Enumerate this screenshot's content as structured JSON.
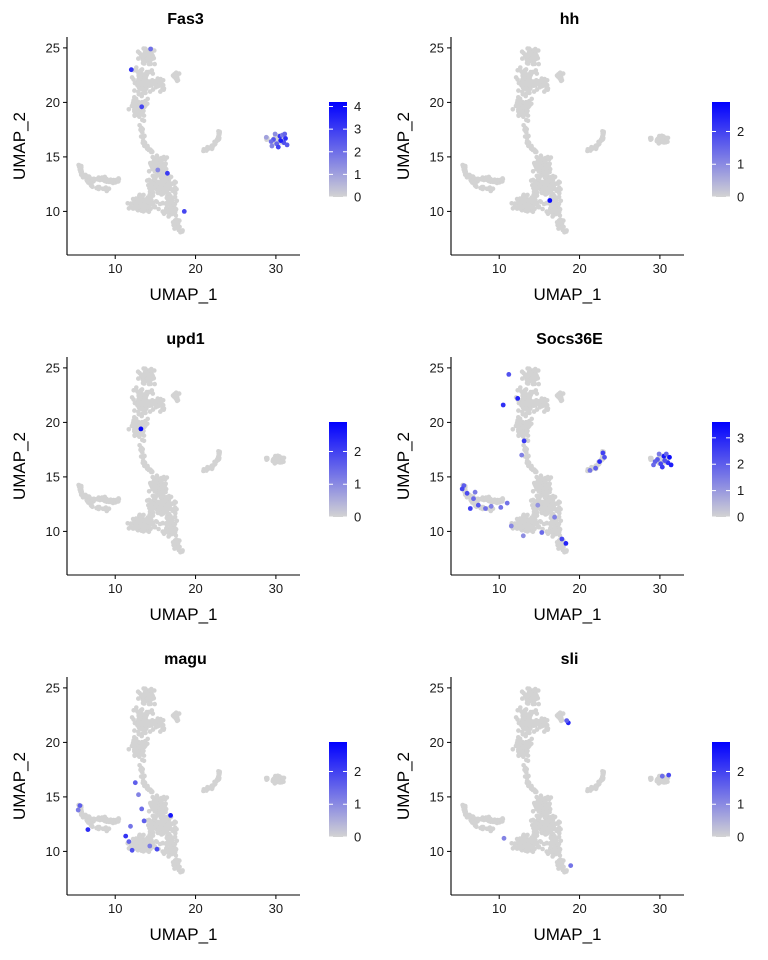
{
  "colors": {
    "low": "#d3d3d3",
    "high": "#0000ff",
    "axis": "#000000"
  },
  "chart_data": [
    {
      "type": "scatter",
      "title": "Fas3",
      "xlabel": "UMAP_1",
      "ylabel": "UMAP_2",
      "xlim": [
        4,
        33
      ],
      "ylim": [
        6,
        26
      ],
      "xticks": [
        "10",
        "20",
        "30"
      ],
      "yticks": [
        "10",
        "15",
        "20",
        "25"
      ],
      "legend": {
        "position": "right",
        "ticks": [
          "0",
          "1",
          "2",
          "3",
          "4"
        ],
        "max": 4.2
      },
      "highlights": [
        {
          "x": 12.0,
          "y": 23.0,
          "v": 3.2
        },
        {
          "x": 13.3,
          "y": 19.6,
          "v": 2.8
        },
        {
          "x": 16.5,
          "y": 13.5,
          "v": 3.0
        },
        {
          "x": 15.3,
          "y": 13.8,
          "v": 1.5
        },
        {
          "x": 18.6,
          "y": 10.0,
          "v": 2.8
        },
        {
          "x": 14.4,
          "y": 24.9,
          "v": 2.0
        },
        {
          "x": 29.7,
          "y": 16.6,
          "v": 2.5
        },
        {
          "x": 30.1,
          "y": 16.2,
          "v": 2.2
        },
        {
          "x": 30.5,
          "y": 16.9,
          "v": 3.1
        },
        {
          "x": 31.0,
          "y": 16.3,
          "v": 2.6
        },
        {
          "x": 30.8,
          "y": 17.0,
          "v": 1.8
        },
        {
          "x": 29.4,
          "y": 16.4,
          "v": 2.0
        },
        {
          "x": 31.2,
          "y": 16.7,
          "v": 3.3
        },
        {
          "x": 30.3,
          "y": 15.9,
          "v": 2.9
        },
        {
          "x": 29.9,
          "y": 17.1,
          "v": 1.4
        },
        {
          "x": 31.4,
          "y": 16.1,
          "v": 2.4
        },
        {
          "x": 30.6,
          "y": 16.5,
          "v": 3.6
        },
        {
          "x": 29.5,
          "y": 16.0,
          "v": 1.6
        },
        {
          "x": 28.8,
          "y": 16.8,
          "v": 1.0
        },
        {
          "x": 31.1,
          "y": 17.1,
          "v": 2.2
        }
      ]
    },
    {
      "type": "scatter",
      "title": "hh",
      "xlabel": "UMAP_1",
      "ylabel": "UMAP_2",
      "xlim": [
        4,
        33
      ],
      "ylim": [
        6,
        26
      ],
      "xticks": [
        "10",
        "20",
        "30"
      ],
      "yticks": [
        "10",
        "15",
        "20",
        "25"
      ],
      "legend": {
        "position": "right",
        "ticks": [
          "0",
          "1",
          "2"
        ],
        "max": 2.9
      },
      "highlights": [
        {
          "x": 16.3,
          "y": 11.0,
          "v": 2.8
        }
      ]
    },
    {
      "type": "scatter",
      "title": "upd1",
      "xlabel": "UMAP_1",
      "ylabel": "UMAP_2",
      "xlim": [
        4,
        33
      ],
      "ylim": [
        6,
        26
      ],
      "xticks": [
        "10",
        "20",
        "30"
      ],
      "yticks": [
        "10",
        "15",
        "20",
        "25"
      ],
      "legend": {
        "position": "right",
        "ticks": [
          "0",
          "1",
          "2"
        ],
        "max": 2.9
      },
      "highlights": [
        {
          "x": 13.2,
          "y": 19.4,
          "v": 2.8
        }
      ]
    },
    {
      "type": "scatter",
      "title": "Socs36E",
      "xlabel": "UMAP_1",
      "ylabel": "UMAP_2",
      "xlim": [
        4,
        33
      ],
      "ylim": [
        6,
        26
      ],
      "xticks": [
        "10",
        "20",
        "30"
      ],
      "yticks": [
        "10",
        "15",
        "20",
        "25"
      ],
      "legend": {
        "position": "right",
        "ticks": [
          "0",
          "1",
          "2",
          "3"
        ],
        "max": 3.6
      },
      "highlights": [
        {
          "x": 11.2,
          "y": 24.4,
          "v": 2.2
        },
        {
          "x": 10.5,
          "y": 21.6,
          "v": 2.8
        },
        {
          "x": 12.3,
          "y": 22.2,
          "v": 3.0
        },
        {
          "x": 13.1,
          "y": 18.3,
          "v": 2.6
        },
        {
          "x": 12.8,
          "y": 17.0,
          "v": 1.4
        },
        {
          "x": 5.6,
          "y": 14.2,
          "v": 2.0
        },
        {
          "x": 6.0,
          "y": 13.5,
          "v": 2.3
        },
        {
          "x": 6.8,
          "y": 13.0,
          "v": 1.8
        },
        {
          "x": 7.4,
          "y": 12.4,
          "v": 2.1
        },
        {
          "x": 8.3,
          "y": 12.1,
          "v": 1.7
        },
        {
          "x": 9.0,
          "y": 12.3,
          "v": 1.4
        },
        {
          "x": 5.4,
          "y": 13.9,
          "v": 2.4
        },
        {
          "x": 7.0,
          "y": 13.6,
          "v": 1.5
        },
        {
          "x": 6.4,
          "y": 12.1,
          "v": 2.5
        },
        {
          "x": 10.2,
          "y": 12.2,
          "v": 1.6
        },
        {
          "x": 11.5,
          "y": 10.5,
          "v": 1.3
        },
        {
          "x": 13.0,
          "y": 9.6,
          "v": 1.2
        },
        {
          "x": 15.3,
          "y": 9.9,
          "v": 1.8
        },
        {
          "x": 17.8,
          "y": 9.3,
          "v": 2.4
        },
        {
          "x": 18.3,
          "y": 8.9,
          "v": 3.0
        },
        {
          "x": 14.8,
          "y": 12.4,
          "v": 1.1
        },
        {
          "x": 16.9,
          "y": 11.3,
          "v": 1.4
        },
        {
          "x": 11.0,
          "y": 12.6,
          "v": 1.6
        },
        {
          "x": 22.9,
          "y": 17.2,
          "v": 2.5
        },
        {
          "x": 22.5,
          "y": 16.4,
          "v": 2.8
        },
        {
          "x": 22.0,
          "y": 15.8,
          "v": 2.0
        },
        {
          "x": 21.3,
          "y": 15.6,
          "v": 1.6
        },
        {
          "x": 23.1,
          "y": 16.8,
          "v": 2.2
        },
        {
          "x": 29.7,
          "y": 16.6,
          "v": 2.1
        },
        {
          "x": 30.1,
          "y": 16.2,
          "v": 2.4
        },
        {
          "x": 30.5,
          "y": 16.9,
          "v": 3.2
        },
        {
          "x": 31.0,
          "y": 16.3,
          "v": 2.8
        },
        {
          "x": 30.8,
          "y": 17.1,
          "v": 1.9
        },
        {
          "x": 29.4,
          "y": 16.4,
          "v": 2.0
        },
        {
          "x": 31.2,
          "y": 16.8,
          "v": 3.4
        },
        {
          "x": 30.3,
          "y": 15.9,
          "v": 2.6
        },
        {
          "x": 29.9,
          "y": 17.1,
          "v": 1.5
        },
        {
          "x": 31.4,
          "y": 16.1,
          "v": 3.1
        },
        {
          "x": 30.6,
          "y": 16.5,
          "v": 2.2
        },
        {
          "x": 29.2,
          "y": 16.1,
          "v": 1.8
        }
      ]
    },
    {
      "type": "scatter",
      "title": "magu",
      "xlabel": "UMAP_1",
      "ylabel": "UMAP_2",
      "xlim": [
        4,
        33
      ],
      "ylim": [
        6,
        26
      ],
      "xticks": [
        "10",
        "20",
        "30"
      ],
      "yticks": [
        "10",
        "15",
        "20",
        "25"
      ],
      "legend": {
        "position": "right",
        "ticks": [
          "0",
          "1",
          "2"
        ],
        "max": 2.9
      },
      "highlights": [
        {
          "x": 5.6,
          "y": 14.2,
          "v": 1.6
        },
        {
          "x": 5.4,
          "y": 13.8,
          "v": 1.2
        },
        {
          "x": 6.6,
          "y": 12.0,
          "v": 2.3
        },
        {
          "x": 11.3,
          "y": 11.4,
          "v": 2.2
        },
        {
          "x": 11.7,
          "y": 10.9,
          "v": 1.5
        },
        {
          "x": 12.1,
          "y": 10.1,
          "v": 1.8
        },
        {
          "x": 11.9,
          "y": 12.3,
          "v": 1.3
        },
        {
          "x": 13.6,
          "y": 12.8,
          "v": 1.6
        },
        {
          "x": 14.3,
          "y": 10.5,
          "v": 1.2
        },
        {
          "x": 15.2,
          "y": 10.2,
          "v": 1.9
        },
        {
          "x": 16.9,
          "y": 13.3,
          "v": 2.6
        },
        {
          "x": 12.5,
          "y": 16.3,
          "v": 1.6
        },
        {
          "x": 12.9,
          "y": 15.2,
          "v": 1.1
        },
        {
          "x": 13.3,
          "y": 13.9,
          "v": 1.4
        }
      ]
    },
    {
      "type": "scatter",
      "title": "sli",
      "xlabel": "UMAP_1",
      "ylabel": "UMAP_2",
      "xlim": [
        4,
        33
      ],
      "ylim": [
        6,
        26
      ],
      "xticks": [
        "10",
        "20",
        "30"
      ],
      "yticks": [
        "10",
        "15",
        "20",
        "25"
      ],
      "legend": {
        "position": "right",
        "ticks": [
          "0",
          "1",
          "2"
        ],
        "max": 2.9
      },
      "highlights": [
        {
          "x": 18.6,
          "y": 21.8,
          "v": 2.4
        },
        {
          "x": 18.4,
          "y": 22.0,
          "v": 1.6
        },
        {
          "x": 30.3,
          "y": 16.9,
          "v": 1.4
        },
        {
          "x": 31.1,
          "y": 17.0,
          "v": 1.9
        },
        {
          "x": 18.9,
          "y": 8.7,
          "v": 1.3
        },
        {
          "x": 10.6,
          "y": 11.2,
          "v": 1.1
        }
      ]
    }
  ]
}
